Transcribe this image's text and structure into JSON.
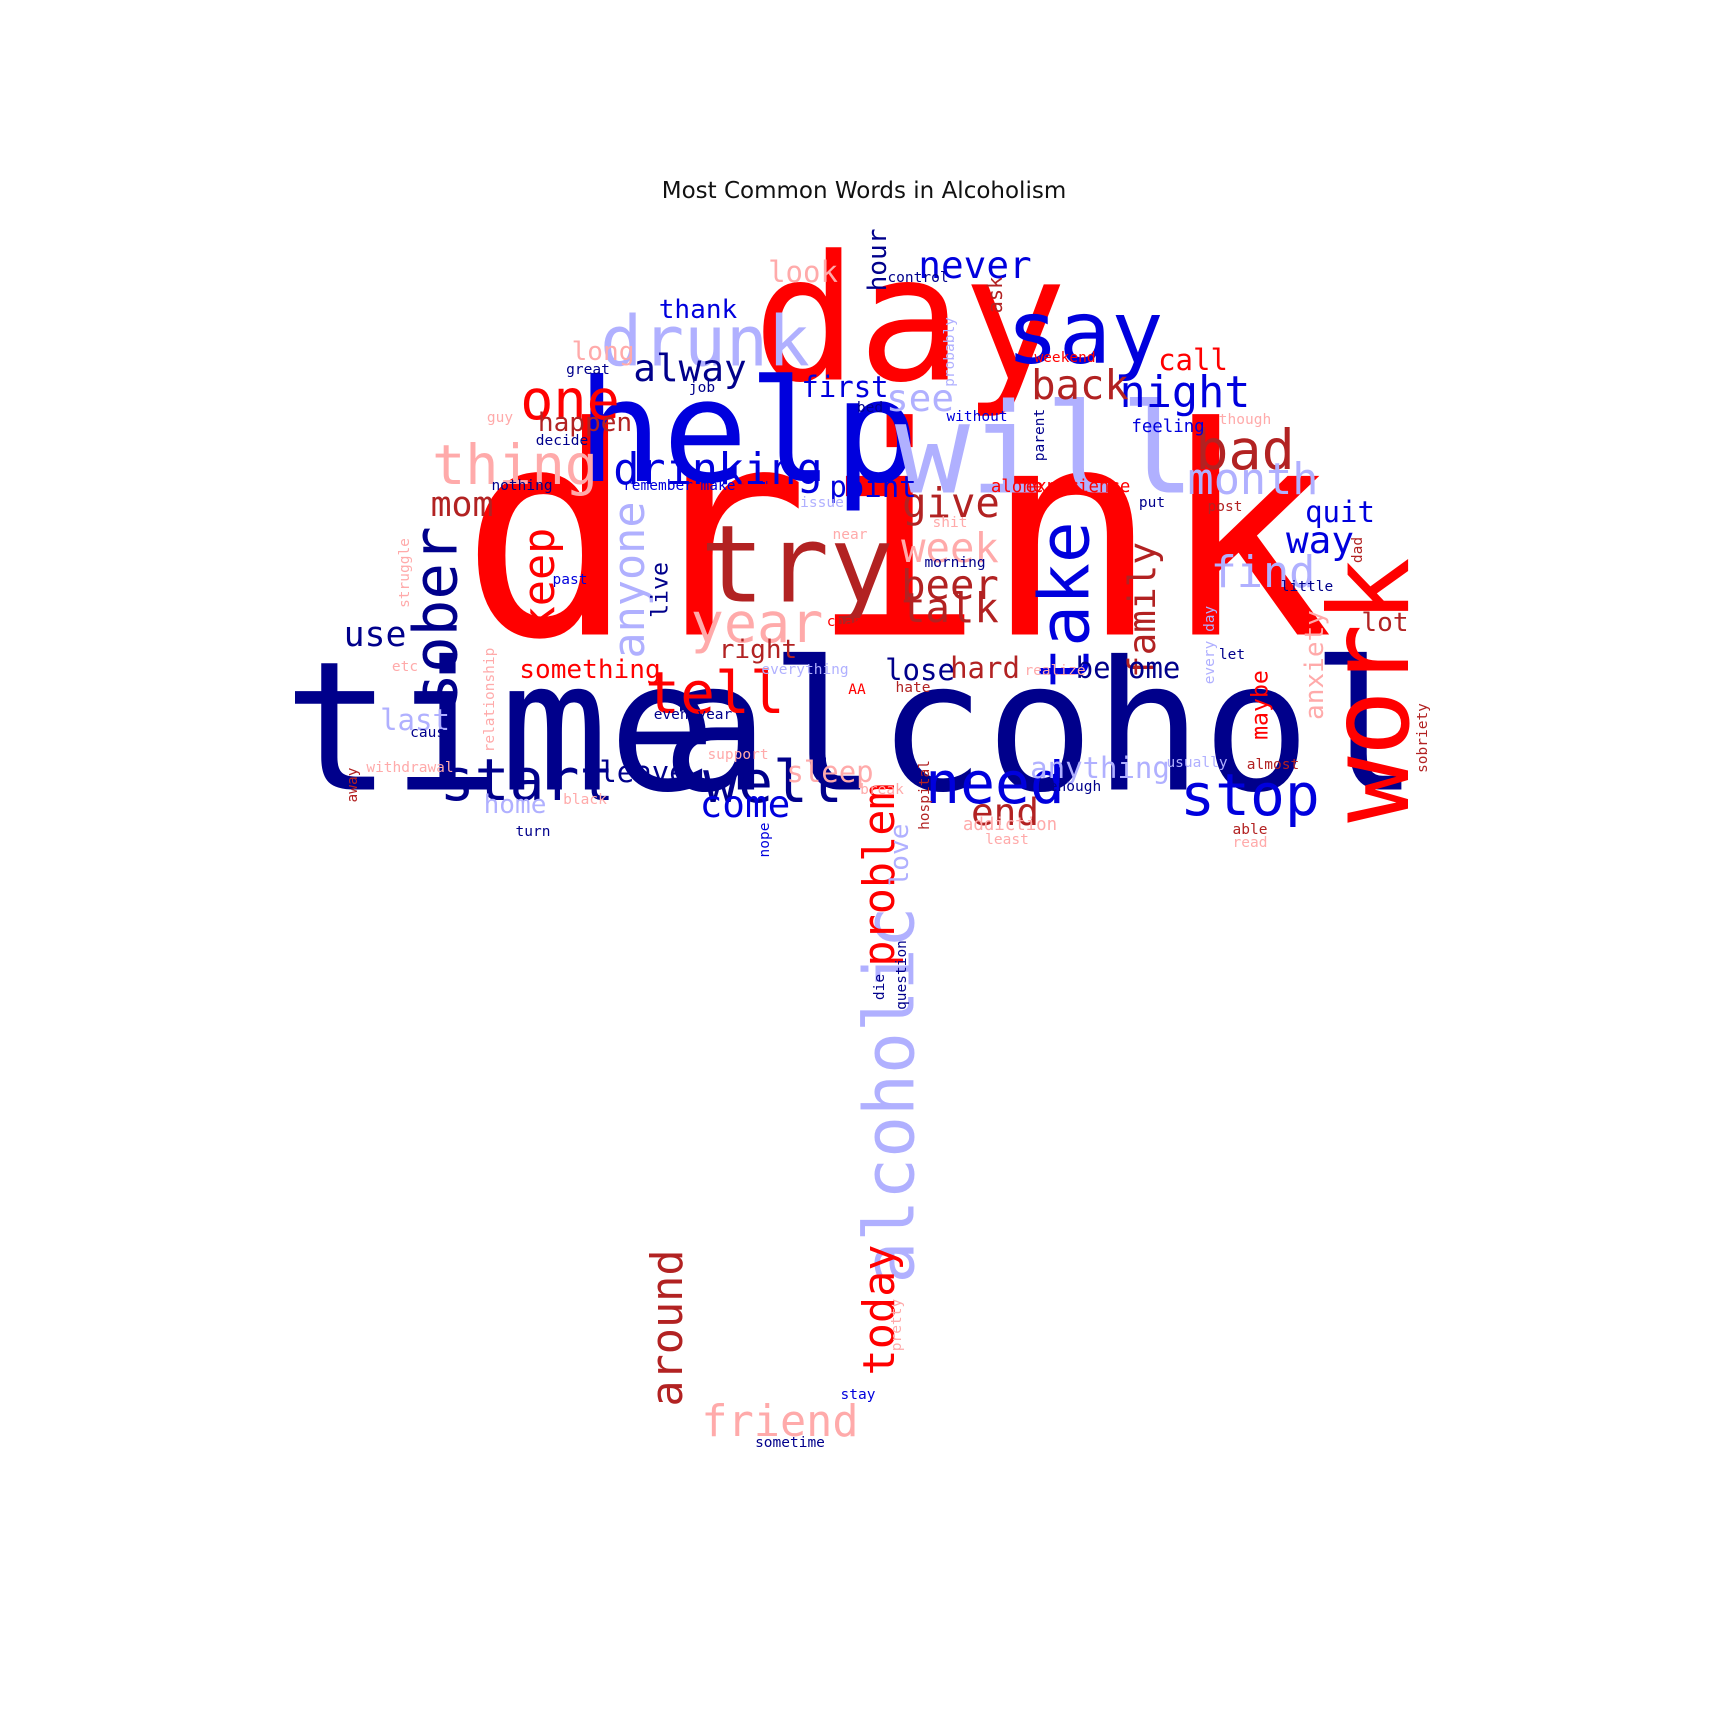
{
  "chart_data": {
    "type": "wordcloud",
    "title": "Most Common Words in Alcoholism",
    "palette": {
      "red": "#ff0000",
      "dark_red": "#b22222",
      "light_red": "#ffaaaa",
      "blue": "#0000dd",
      "navy": "#00008b",
      "light_blue": "#b0b0ff"
    },
    "words": [
      {
        "text": "drink",
        "weight": 1.0,
        "color": "red",
        "vertical": false
      },
      {
        "text": "alcohol",
        "weight": 0.62,
        "color": "navy",
        "vertical": false
      },
      {
        "text": "time",
        "weight": 0.62,
        "color": "navy",
        "vertical": false
      },
      {
        "text": "day",
        "weight": 0.6,
        "color": "red",
        "vertical": false
      },
      {
        "text": "help",
        "weight": 0.49,
        "color": "blue",
        "vertical": false
      },
      {
        "text": "will",
        "weight": 0.43,
        "color": "light_blue",
        "vertical": false
      },
      {
        "text": "work",
        "weight": 0.38,
        "color": "red",
        "vertical": true
      },
      {
        "text": "try",
        "weight": 0.37,
        "color": "dark_red",
        "vertical": false
      },
      {
        "text": "alcoholic",
        "weight": 0.24,
        "color": "light_blue",
        "vertical": true
      },
      {
        "text": "say",
        "weight": 0.3,
        "color": "blue",
        "vertical": false
      },
      {
        "text": "drunk",
        "weight": 0.24,
        "color": "light_blue",
        "vertical": false
      },
      {
        "text": "take",
        "weight": 0.24,
        "color": "blue",
        "vertical": true
      },
      {
        "text": "sober",
        "weight": 0.21,
        "color": "navy",
        "vertical": true
      },
      {
        "text": "tell",
        "weight": 0.2,
        "color": "red",
        "vertical": false
      },
      {
        "text": "well",
        "weight": 0.2,
        "color": "navy",
        "vertical": false
      },
      {
        "text": "need",
        "weight": 0.2,
        "color": "blue",
        "vertical": false
      },
      {
        "text": "start",
        "weight": 0.2,
        "color": "navy",
        "vertical": false
      },
      {
        "text": "stop",
        "weight": 0.2,
        "color": "blue",
        "vertical": false
      },
      {
        "text": "thing",
        "weight": 0.19,
        "color": "light_red",
        "vertical": false
      },
      {
        "text": "year",
        "weight": 0.19,
        "color": "light_red",
        "vertical": false
      },
      {
        "text": "one",
        "weight": 0.19,
        "color": "red",
        "vertical": false
      },
      {
        "text": "bad",
        "weight": 0.19,
        "color": "dark_red",
        "vertical": false
      },
      {
        "text": "anyone",
        "weight": 0.15,
        "color": "light_blue",
        "vertical": true
      },
      {
        "text": "keep",
        "weight": 0.15,
        "color": "red",
        "vertical": true
      },
      {
        "text": "problem",
        "weight": 0.15,
        "color": "red",
        "vertical": true
      },
      {
        "text": "around",
        "weight": 0.15,
        "color": "dark_red",
        "vertical": true
      },
      {
        "text": "today",
        "weight": 0.15,
        "color": "red",
        "vertical": true
      },
      {
        "text": "friend",
        "weight": 0.15,
        "color": "light_red",
        "vertical": false
      },
      {
        "text": "drinking",
        "weight": 0.15,
        "color": "blue",
        "vertical": false
      },
      {
        "text": "month",
        "weight": 0.15,
        "color": "light_blue",
        "vertical": false
      },
      {
        "text": "find",
        "weight": 0.15,
        "color": "light_blue",
        "vertical": false
      },
      {
        "text": "night",
        "weight": 0.15,
        "color": "blue",
        "vertical": false
      },
      {
        "text": "back",
        "weight": 0.14,
        "color": "dark_red",
        "vertical": false
      },
      {
        "text": "give",
        "weight": 0.14,
        "color": "dark_red",
        "vertical": false
      },
      {
        "text": "talk",
        "weight": 0.14,
        "color": "dark_red",
        "vertical": false
      },
      {
        "text": "week",
        "weight": 0.14,
        "color": "light_red",
        "vertical": false
      },
      {
        "text": "beer",
        "weight": 0.14,
        "color": "dark_red",
        "vertical": false
      },
      {
        "text": "family",
        "weight": 0.13,
        "color": "dark_red",
        "vertical": true
      },
      {
        "text": "never",
        "weight": 0.13,
        "color": "blue",
        "vertical": false
      },
      {
        "text": "alway",
        "weight": 0.13,
        "color": "navy",
        "vertical": false
      },
      {
        "text": "see",
        "weight": 0.13,
        "color": "light_blue",
        "vertical": false
      },
      {
        "text": "come",
        "weight": 0.13,
        "color": "blue",
        "vertical": false
      },
      {
        "text": "end",
        "weight": 0.13,
        "color": "dark_red",
        "vertical": false
      },
      {
        "text": "way",
        "weight": 0.13,
        "color": "blue",
        "vertical": false
      },
      {
        "text": "mom",
        "weight": 0.12,
        "color": "dark_red",
        "vertical": false
      },
      {
        "text": "use",
        "weight": 0.12,
        "color": "navy",
        "vertical": false
      },
      {
        "text": "anxiety",
        "weight": 0.09,
        "color": "light_red",
        "vertical": true
      },
      {
        "text": "love",
        "weight": 0.09,
        "color": "light_blue",
        "vertical": true
      },
      {
        "text": "hour",
        "weight": 0.09,
        "color": "navy",
        "vertical": true
      },
      {
        "text": "look",
        "weight": 0.1,
        "color": "light_red",
        "vertical": false
      },
      {
        "text": "first",
        "weight": 0.1,
        "color": "blue",
        "vertical": false
      },
      {
        "text": "point",
        "weight": 0.1,
        "color": "blue",
        "vertical": false
      },
      {
        "text": "call",
        "weight": 0.1,
        "color": "red",
        "vertical": false
      },
      {
        "text": "quit",
        "weight": 0.1,
        "color": "blue",
        "vertical": false
      },
      {
        "text": "lose",
        "weight": 0.1,
        "color": "navy",
        "vertical": false
      },
      {
        "text": "hard",
        "weight": 0.1,
        "color": "dark_red",
        "vertical": false
      },
      {
        "text": "become",
        "weight": 0.1,
        "color": "navy",
        "vertical": false
      },
      {
        "text": "anything",
        "weight": 0.1,
        "color": "light_blue",
        "vertical": false
      },
      {
        "text": "sleep",
        "weight": 0.1,
        "color": "light_red",
        "vertical": false
      },
      {
        "text": "leave",
        "weight": 0.1,
        "color": "navy",
        "vertical": false
      },
      {
        "text": "last",
        "weight": 0.1,
        "color": "light_blue",
        "vertical": false
      },
      {
        "text": "home",
        "weight": 0.09,
        "color": "light_blue",
        "vertical": false
      },
      {
        "text": "happen",
        "weight": 0.09,
        "color": "dark_red",
        "vertical": false
      },
      {
        "text": "thank",
        "weight": 0.09,
        "color": "blue",
        "vertical": false
      },
      {
        "text": "long",
        "weight": 0.09,
        "color": "light_red",
        "vertical": false
      },
      {
        "text": "something",
        "weight": 0.09,
        "color": "red",
        "vertical": false
      },
      {
        "text": "right",
        "weight": 0.09,
        "color": "dark_red",
        "vertical": false
      },
      {
        "text": "lot",
        "weight": 0.09,
        "color": "dark_red",
        "vertical": false
      },
      {
        "text": "maybe",
        "weight": 0.08,
        "color": "red",
        "vertical": true
      },
      {
        "text": "live",
        "weight": 0.08,
        "color": "navy",
        "vertical": true
      },
      {
        "text": "ask",
        "weight": 0.07,
        "color": "dark_red",
        "vertical": true
      },
      {
        "text": "feeling",
        "weight": 0.06,
        "color": "blue",
        "vertical": false
      },
      {
        "text": "experience",
        "weight": 0.06,
        "color": "red",
        "vertical": false
      },
      {
        "text": "alone",
        "weight": 0.06,
        "color": "red",
        "vertical": false
      },
      {
        "text": "addiction",
        "weight": 0.06,
        "color": "light_red",
        "vertical": false
      },
      {
        "text": "control",
        "weight": 0.05,
        "color": "navy",
        "vertical": false
      },
      {
        "text": "nothing",
        "weight": 0.05,
        "color": "navy",
        "vertical": false
      },
      {
        "text": "remember",
        "weight": 0.05,
        "color": "blue",
        "vertical": false
      },
      {
        "text": "make",
        "weight": 0.05,
        "color": "blue",
        "vertical": false
      },
      {
        "text": "deal",
        "weight": 0.05,
        "color": "red",
        "vertical": false
      },
      {
        "text": "decide",
        "weight": 0.05,
        "color": "navy",
        "vertical": false
      },
      {
        "text": "great",
        "weight": 0.05,
        "color": "navy",
        "vertical": false
      },
      {
        "text": "job",
        "weight": 0.05,
        "color": "navy",
        "vertical": false
      },
      {
        "text": "without",
        "weight": 0.05,
        "color": "blue",
        "vertical": false
      },
      {
        "text": "parent",
        "weight": 0.05,
        "color": "navy",
        "vertical": true
      },
      {
        "text": "post",
        "weight": 0.05,
        "color": "dark_red",
        "vertical": false
      },
      {
        "text": "put",
        "weight": 0.05,
        "color": "navy",
        "vertical": false
      },
      {
        "text": "though",
        "weight": 0.05,
        "color": "light_red",
        "vertical": false
      },
      {
        "text": "little",
        "weight": 0.05,
        "color": "navy",
        "vertical": false
      },
      {
        "text": "morning",
        "weight": 0.05,
        "color": "navy",
        "vertical": false
      },
      {
        "text": "past",
        "weight": 0.05,
        "color": "blue",
        "vertical": false
      },
      {
        "text": "change",
        "weight": 0.05,
        "color": "red",
        "vertical": false
      },
      {
        "text": "everything",
        "weight": 0.05,
        "color": "light_blue",
        "vertical": false
      },
      {
        "text": "hate",
        "weight": 0.05,
        "color": "dark_red",
        "vertical": false
      },
      {
        "text": "realize",
        "weight": 0.05,
        "color": "light_red",
        "vertical": false
      },
      {
        "text": "break",
        "weight": 0.05,
        "color": "light_red",
        "vertical": false
      },
      {
        "text": "enough",
        "weight": 0.05,
        "color": "navy",
        "vertical": false
      },
      {
        "text": "usually",
        "weight": 0.05,
        "color": "light_blue",
        "vertical": false
      },
      {
        "text": "almost",
        "weight": 0.05,
        "color": "dark_red",
        "vertical": false
      },
      {
        "text": "black",
        "weight": 0.05,
        "color": "light_red",
        "vertical": false
      },
      {
        "text": "turn",
        "weight": 0.05,
        "color": "navy",
        "vertical": false
      },
      {
        "text": "nope",
        "weight": 0.05,
        "color": "blue",
        "vertical": true
      },
      {
        "text": "least",
        "weight": 0.05,
        "color": "light_red",
        "vertical": false
      },
      {
        "text": "able",
        "weight": 0.05,
        "color": "dark_red",
        "vertical": false
      },
      {
        "text": "read",
        "weight": 0.05,
        "color": "light_red",
        "vertical": false
      },
      {
        "text": "support",
        "weight": 0.05,
        "color": "light_red",
        "vertical": false
      },
      {
        "text": "struggle",
        "weight": 0.05,
        "color": "light_red",
        "vertical": true
      },
      {
        "text": "question",
        "weight": 0.05,
        "color": "navy",
        "vertical": true
      },
      {
        "text": "die",
        "weight": 0.05,
        "color": "navy",
        "vertical": true
      },
      {
        "text": "hospital",
        "weight": 0.05,
        "color": "dark_red",
        "vertical": true
      },
      {
        "text": "sobriety",
        "weight": 0.05,
        "color": "dark_red",
        "vertical": true
      },
      {
        "text": "pretty",
        "weight": 0.05,
        "color": "light_red",
        "vertical": true
      },
      {
        "text": "stay",
        "weight": 0.05,
        "color": "blue",
        "vertical": false
      },
      {
        "text": "sometime",
        "weight": 0.05,
        "color": "navy",
        "vertical": false
      },
      {
        "text": "every day",
        "weight": 0.05,
        "color": "light_blue",
        "vertical": true
      },
      {
        "text": "let",
        "weight": 0.05,
        "color": "navy",
        "vertical": false
      },
      {
        "text": "AA",
        "weight": 0.05,
        "color": "red",
        "vertical": false
      },
      {
        "text": "bed",
        "weight": 0.05,
        "color": "navy",
        "vertical": false
      },
      {
        "text": "near",
        "weight": 0.05,
        "color": "light_red",
        "vertical": false
      },
      {
        "text": "shit",
        "weight": 0.05,
        "color": "light_red",
        "vertical": false
      },
      {
        "text": "issue",
        "weight": 0.05,
        "color": "light_blue",
        "vertical": false
      },
      {
        "text": "guy",
        "weight": 0.05,
        "color": "light_red",
        "vertical": false
      },
      {
        "text": "weekend",
        "weight": 0.05,
        "color": "red",
        "vertical": false
      },
      {
        "text": "dad",
        "weight": 0.05,
        "color": "dark_red",
        "vertical": true
      },
      {
        "text": "probably",
        "weight": 0.05,
        "color": "light_blue",
        "vertical": true
      },
      {
        "text": "etc",
        "weight": 0.05,
        "color": "light_red",
        "vertical": false
      },
      {
        "text": "away",
        "weight": 0.05,
        "color": "dark_red",
        "vertical": true
      },
      {
        "text": "withdrawal",
        "weight": 0.05,
        "color": "light_red",
        "vertical": false
      },
      {
        "text": "even year",
        "weight": 0.05,
        "color": "navy",
        "vertical": false
      },
      {
        "text": "relationship",
        "weight": 0.05,
        "color": "light_red",
        "vertical": true
      },
      {
        "text": "cause",
        "weight": 0.05,
        "color": "navy",
        "vertical": false
      }
    ]
  }
}
